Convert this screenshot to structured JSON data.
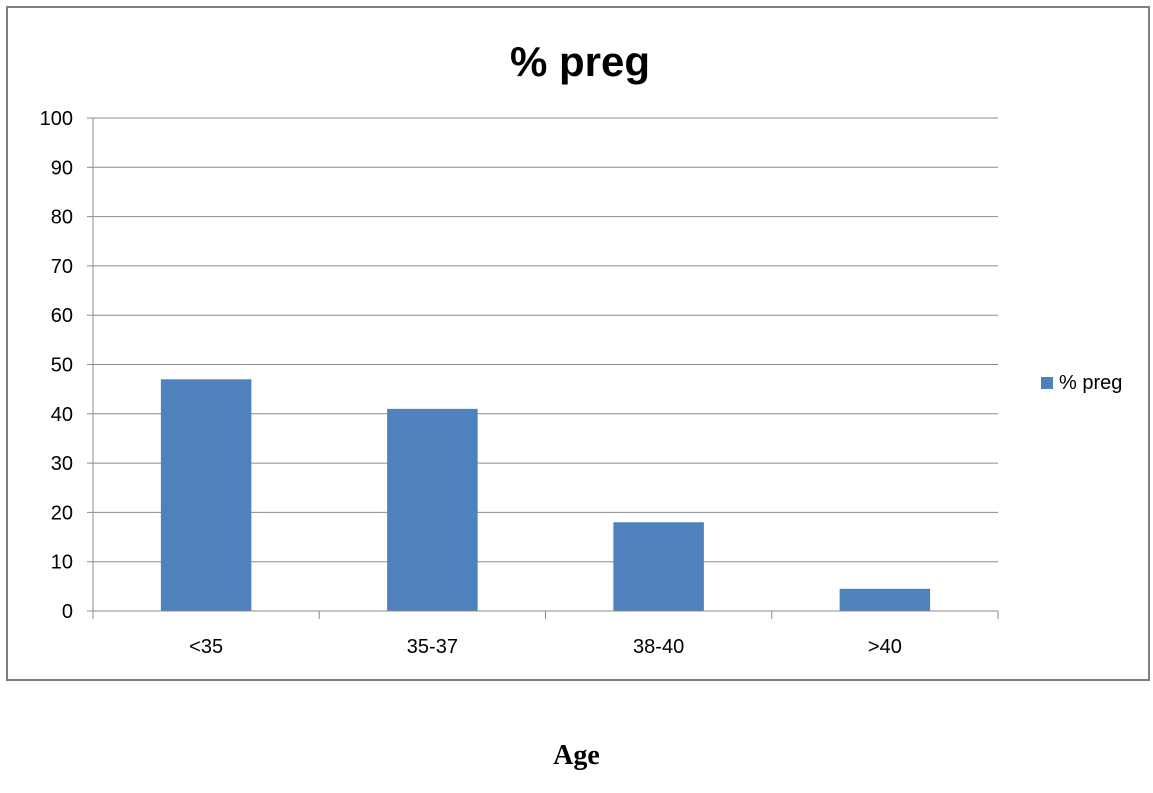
{
  "chart_data": {
    "type": "bar",
    "title": "% preg",
    "xlabel": "Age",
    "ylabel": "",
    "categories": [
      "<35",
      "35-37",
      "38-40",
      ">40"
    ],
    "series": [
      {
        "name": "% preg",
        "values": [
          47,
          41,
          18,
          4.5
        ],
        "color": "#4f81bd"
      }
    ],
    "ylim": [
      0,
      100
    ],
    "yticks": [
      "0",
      "10",
      "20",
      "30",
      "40",
      "50",
      "60",
      "70",
      "80",
      "90",
      "100"
    ],
    "grid": true,
    "legend": {
      "placement": "right",
      "entries": [
        "% preg"
      ]
    }
  }
}
